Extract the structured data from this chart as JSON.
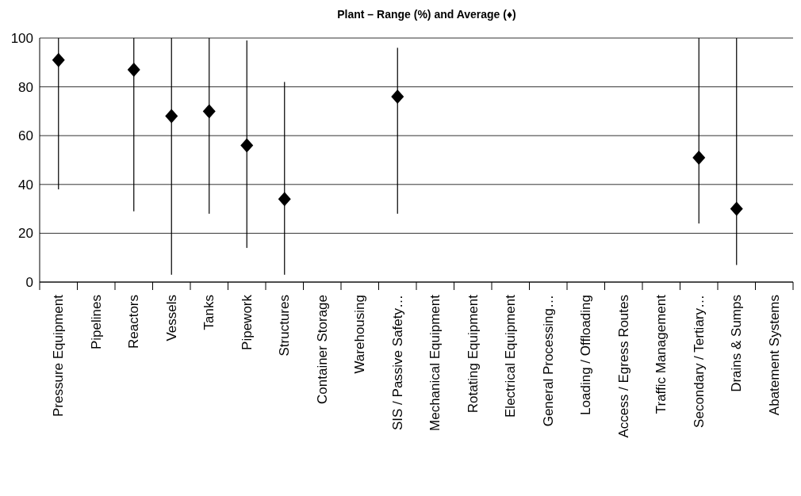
{
  "chart_data": {
    "type": "scatter",
    "title": "Plant – Range (%) and Average (♦)",
    "categories": [
      "Pressure Equipment",
      "Pipelines",
      "Reactors",
      "Vessels",
      "Tanks",
      "Pipework",
      "Structures",
      "Container Storage",
      "Warehousing",
      "SIS / Passive Safety…",
      "Mechanical Equipment",
      "Rotating Equipment",
      "Electrical Equipment",
      "General Processing…",
      "Loading / Offloading",
      "Access / Egress Routes",
      "Traffic Management",
      "Secondary / Tertiary…",
      "Drains & Sumps",
      "Abatement Systems"
    ],
    "values": [
      91,
      null,
      87,
      68,
      70,
      56,
      34,
      null,
      null,
      76,
      null,
      null,
      null,
      null,
      null,
      null,
      null,
      51,
      30,
      null
    ],
    "errors": [
      [
        38,
        100
      ],
      null,
      [
        29,
        100
      ],
      [
        3,
        100
      ],
      [
        28,
        100
      ],
      [
        14,
        99
      ],
      [
        3,
        82
      ],
      null,
      null,
      [
        28,
        96
      ],
      null,
      null,
      null,
      null,
      null,
      null,
      null,
      [
        24,
        100
      ],
      [
        7,
        100
      ],
      null
    ],
    "color": "#000000",
    "marker": "diamond",
    "ylim": [
      0,
      100
    ],
    "yticks": [
      0,
      20,
      40,
      60,
      80,
      100
    ],
    "grid": "y"
  }
}
